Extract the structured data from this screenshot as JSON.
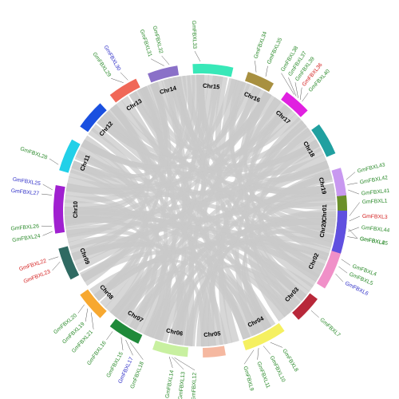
{
  "colors": {
    "link": "#c9c9c9",
    "green": "#2a8a2a",
    "red": "#d42020",
    "blue": "#3030c8",
    "tick": "#555555"
  },
  "chromosomes": [
    {
      "name": "Chr01",
      "color": "#6a8f2a"
    },
    {
      "name": "Chr02",
      "color": "#f090c8"
    },
    {
      "name": "Chr03",
      "color": "#b8283a"
    },
    {
      "name": "Chr04",
      "color": "#f5f060"
    },
    {
      "name": "Chr05",
      "color": "#f5b8a0"
    },
    {
      "name": "Chr06",
      "color": "#c8f0a0"
    },
    {
      "name": "Chr07",
      "color": "#1f8a3a"
    },
    {
      "name": "Chr08",
      "color": "#f7a830"
    },
    {
      "name": "Chr09",
      "color": "#2f6a62"
    },
    {
      "name": "Chr10",
      "color": "#a020d0"
    },
    {
      "name": "Chr11",
      "color": "#22d0e8"
    },
    {
      "name": "Chr12",
      "color": "#1a50e0"
    },
    {
      "name": "Chr13",
      "color": "#f06858"
    },
    {
      "name": "Chr14",
      "color": "#8a70c8"
    },
    {
      "name": "Chr15",
      "color": "#38e8b8"
    },
    {
      "name": "Chr16",
      "color": "#a89040"
    },
    {
      "name": "Chr17",
      "color": "#e020e0"
    },
    {
      "name": "Chr18",
      "color": "#20a0a0"
    },
    {
      "name": "Chr19",
      "color": "#c898f0"
    },
    {
      "name": "Chr20",
      "color": "#6050e0"
    }
  ],
  "genes": [
    {
      "name": "GmFBXL1",
      "color": "green"
    },
    {
      "name": "GmFBXL3",
      "color": "red"
    },
    {
      "name": "GmFBXL2",
      "color": "green"
    },
    {
      "name": "GmFBXL4",
      "color": "green"
    },
    {
      "name": "GmFBXL5",
      "color": "green"
    },
    {
      "name": "GmFBXL6",
      "color": "blue"
    },
    {
      "name": "GmFBXL7",
      "color": "green"
    },
    {
      "name": "GmFBXL8",
      "color": "green"
    },
    {
      "name": "GmFBXL10",
      "color": "green"
    },
    {
      "name": "GmFBXL11",
      "color": "green"
    },
    {
      "name": "GmFBXL9",
      "color": "green"
    },
    {
      "name": "GmFBXL12",
      "color": "green"
    },
    {
      "name": "GmFBXL13",
      "color": "green"
    },
    {
      "name": "GmFBXL14",
      "color": "green"
    },
    {
      "name": "GmFBXL18",
      "color": "green"
    },
    {
      "name": "GmFBXL17",
      "color": "blue"
    },
    {
      "name": "GmFBXL15",
      "color": "green"
    },
    {
      "name": "GmFBXL16",
      "color": "green"
    },
    {
      "name": "GmFBXL21",
      "color": "green"
    },
    {
      "name": "GmFBXL19",
      "color": "green"
    },
    {
      "name": "GmFBXL20",
      "color": "green"
    },
    {
      "name": "GmFBXL23",
      "color": "red"
    },
    {
      "name": "GmFBXL22",
      "color": "red"
    },
    {
      "name": "GmFBXL27",
      "color": "blue"
    },
    {
      "name": "GmFBXL25",
      "color": "blue"
    },
    {
      "name": "GmFBXL26",
      "color": "green"
    },
    {
      "name": "GmFBXL24",
      "color": "green"
    },
    {
      "name": "GmFBXL28",
      "color": "green"
    },
    {
      "name": "GmFBXL29",
      "color": "green"
    },
    {
      "name": "GmFBXL30",
      "color": "blue"
    },
    {
      "name": "GmFBXL31",
      "color": "green"
    },
    {
      "name": "GmFBXL32",
      "color": "green"
    },
    {
      "name": "GmFBXL33",
      "color": "green"
    },
    {
      "name": "GmFBXL34",
      "color": "green"
    },
    {
      "name": "GmFBXL35",
      "color": "green"
    },
    {
      "name": "GmFBXL38",
      "color": "green"
    },
    {
      "name": "GmFBXL37",
      "color": "green"
    },
    {
      "name": "GmFBXL39",
      "color": "green"
    },
    {
      "name": "GmFBXL36",
      "color": "red"
    },
    {
      "name": "GmFBXL40",
      "color": "green"
    },
    {
      "name": "GmFBXL43",
      "color": "green"
    },
    {
      "name": "GmFBXL42",
      "color": "green"
    },
    {
      "name": "GmFBXL41",
      "color": "green"
    },
    {
      "name": "GmFBXL44",
      "color": "green"
    },
    {
      "name": "GmFBXL45",
      "color": "green"
    }
  ]
}
